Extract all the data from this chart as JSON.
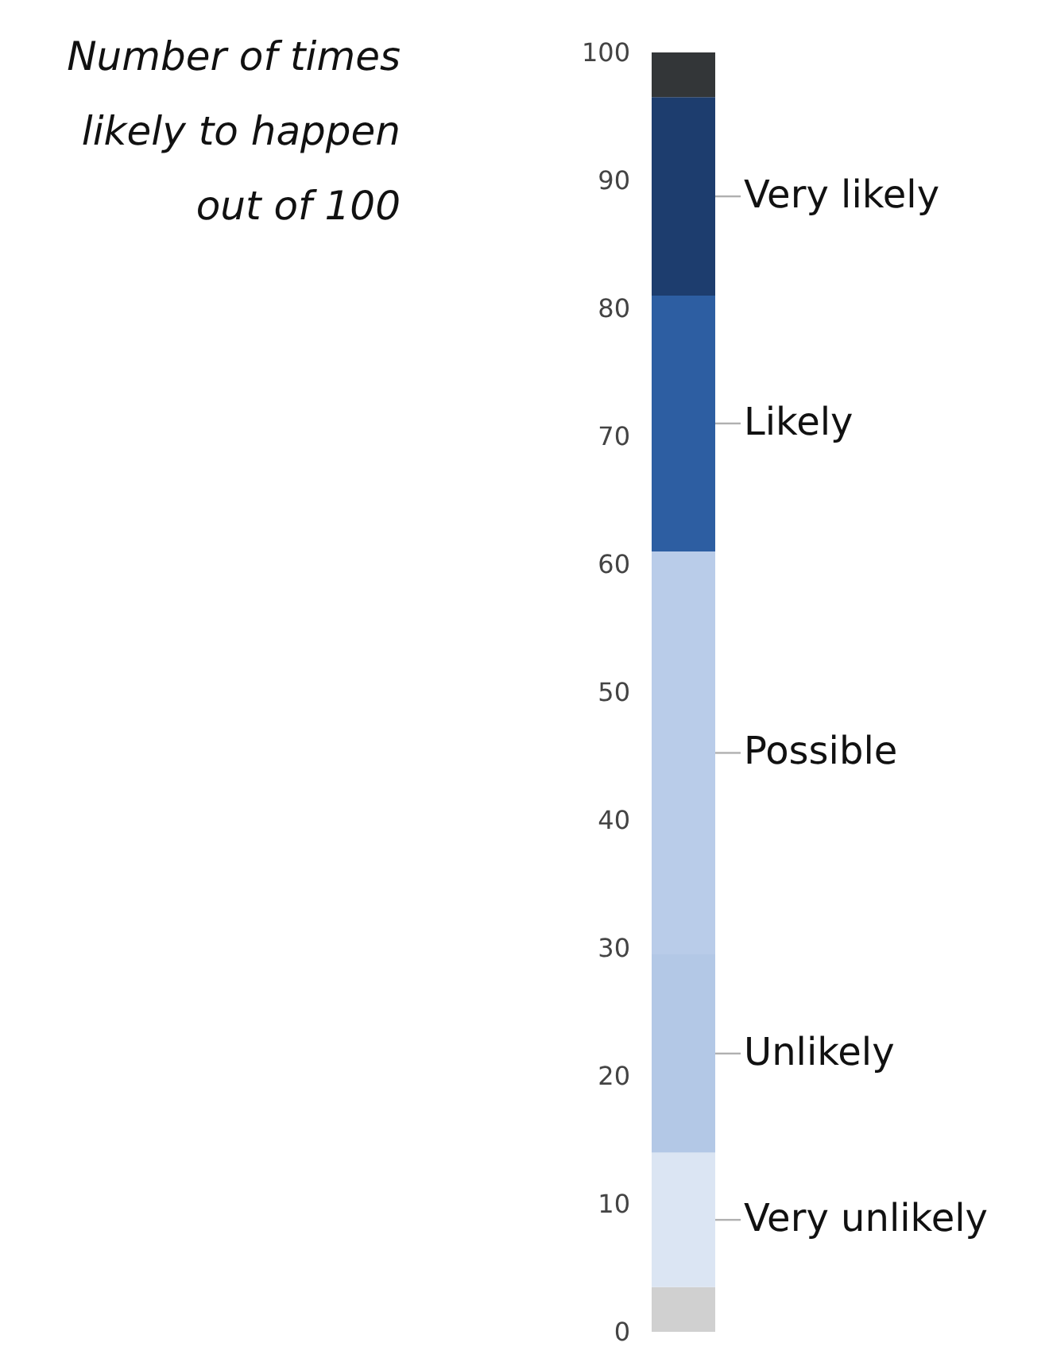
{
  "chart_data": {
    "type": "bar",
    "title": "Number of times likely to happen out of 100",
    "categories": [
      null
    ],
    "stacked": true,
    "ylim": [
      0,
      100
    ],
    "yticks": [
      0,
      10,
      20,
      30,
      40,
      50,
      60,
      70,
      80,
      90,
      100
    ],
    "series": [
      {
        "color": "#d0d0d0",
        "values": [
          3.5
        ]
      },
      {
        "name": "Very unlikely",
        "color": "#dbe5f3",
        "values": [
          10.5
        ]
      },
      {
        "name": "Unlikely",
        "color": "#b3c8e6",
        "values": [
          15.5
        ]
      },
      {
        "name": "Possible",
        "color": "#b9cce9",
        "values": [
          31.5
        ]
      },
      {
        "name": "Likely",
        "color": "#2d5ea2",
        "values": [
          20
        ]
      },
      {
        "name": "Very likely",
        "color": "#1d3d6e",
        "values": [
          15.5
        ]
      },
      {
        "color": "#333638",
        "values": [
          3.5
        ]
      }
    ]
  }
}
